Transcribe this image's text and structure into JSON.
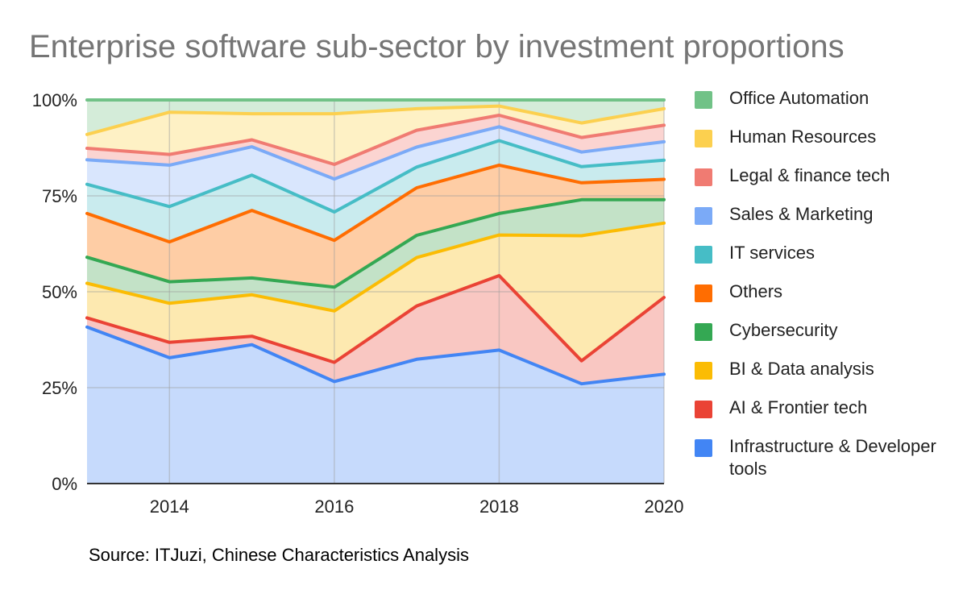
{
  "title": "Enterprise software sub-sector by investment proportions",
  "source": "Source: ITJuzi, Chinese Characteristics Analysis",
  "chart_data": {
    "type": "area",
    "stacked": true,
    "x": [
      2013,
      2014,
      2015,
      2016,
      2017,
      2018,
      2019,
      2020
    ],
    "x_ticks": [
      "2014",
      "2016",
      "2018",
      "2020"
    ],
    "y_ticks": [
      "0%",
      "25%",
      "50%",
      "75%",
      "100%"
    ],
    "ylim": [
      0,
      100
    ],
    "grid": true,
    "legend_position": "right",
    "series": [
      {
        "name": "Infrastructure & Developer tools",
        "color": "#4285f4",
        "fill": "#c6dafc",
        "values": [
          40.8,
          32.8,
          36.2,
          26.6,
          32.4,
          34.8,
          26.0,
          28.5
        ]
      },
      {
        "name": "AI & Frontier tech",
        "color": "#ea4335",
        "fill": "#f9c7c2",
        "values": [
          2.4,
          4.0,
          2.2,
          5.0,
          13.9,
          19.4,
          6.0,
          20.0
        ]
      },
      {
        "name": "BI & Data analysis",
        "color": "#fbbc04",
        "fill": "#fde9b0",
        "values": [
          9.0,
          10.2,
          10.8,
          13.4,
          12.6,
          10.6,
          32.6,
          19.4
        ]
      },
      {
        "name": "Cybersecurity",
        "color": "#34a853",
        "fill": "#c3e2c7",
        "values": [
          6.8,
          5.6,
          4.4,
          6.2,
          5.8,
          5.6,
          9.4,
          6.1
        ]
      },
      {
        "name": "Others",
        "color": "#ff6d01",
        "fill": "#fecda5",
        "values": [
          11.4,
          10.4,
          17.6,
          12.2,
          12.4,
          12.6,
          4.4,
          5.3
        ]
      },
      {
        "name": "IT services",
        "color": "#46bdc6",
        "fill": "#c9ebee",
        "values": [
          7.6,
          9.2,
          9.2,
          7.4,
          5.4,
          6.4,
          4.2,
          5.0
        ]
      },
      {
        "name": "Sales & Marketing",
        "color": "#7baaf7",
        "fill": "#d9e6fd",
        "values": [
          6.4,
          10.8,
          7.4,
          8.6,
          5.2,
          3.6,
          3.8,
          4.8
        ]
      },
      {
        "name": "Legal & finance tech",
        "color": "#f07b72",
        "fill": "#fbd4d1",
        "values": [
          3.0,
          2.8,
          1.8,
          3.8,
          4.4,
          3.0,
          3.8,
          4.3
        ]
      },
      {
        "name": "Human Resources",
        "color": "#fcd04f",
        "fill": "#fef1c5",
        "values": [
          3.6,
          11.0,
          6.8,
          13.2,
          5.6,
          2.4,
          3.8,
          4.3
        ]
      },
      {
        "name": "Office Automation",
        "color": "#71c287",
        "fill": "#d4ecd9",
        "values": [
          9.0,
          3.2,
          3.6,
          3.6,
          2.4,
          1.6,
          6.0,
          2.3
        ]
      }
    ]
  }
}
